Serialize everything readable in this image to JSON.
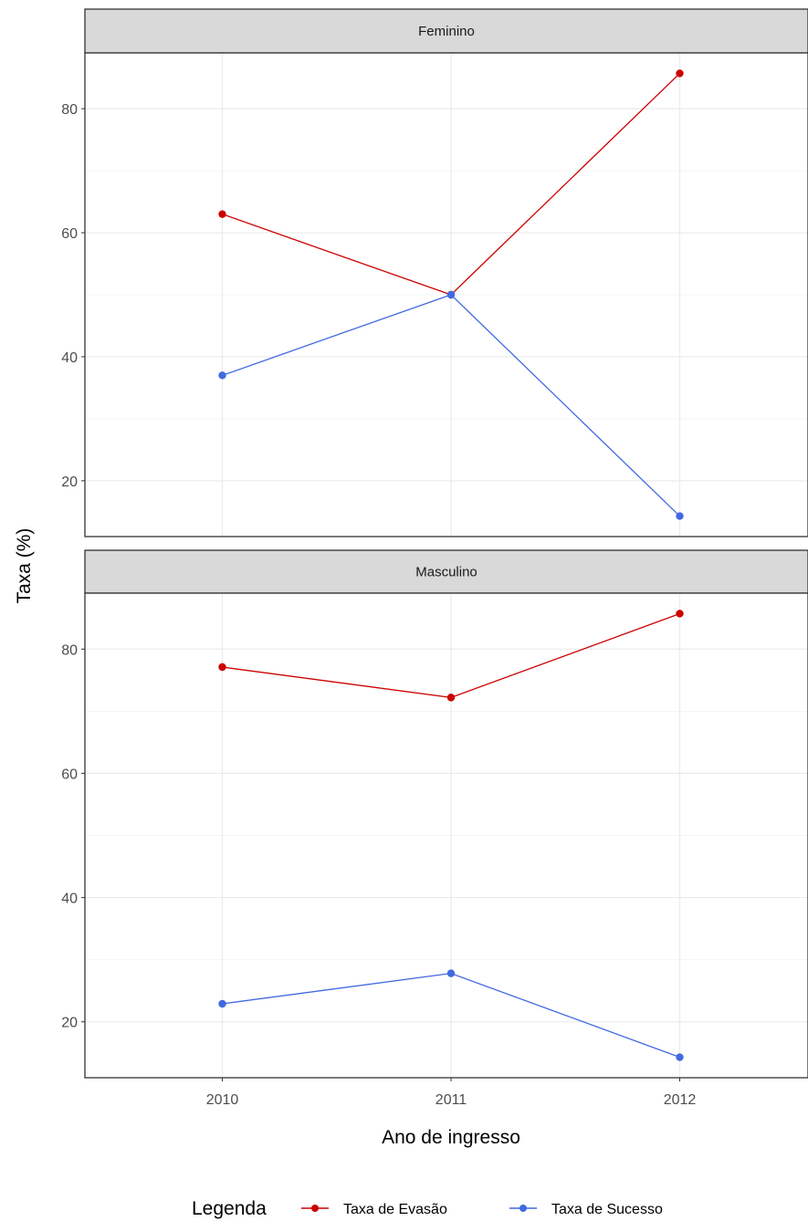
{
  "chart_data": {
    "type": "line",
    "facet_layout": "rows",
    "x": [
      "2010",
      "2011",
      "2012"
    ],
    "xlabel": "Ano de ingresso",
    "ylabel": "Taxa (%)",
    "ylim": [
      11,
      89
    ],
    "yticks": [
      20,
      40,
      60,
      80
    ],
    "grid": true,
    "legend": {
      "title": "Legenda",
      "position": "bottom",
      "entries": [
        {
          "name": "Taxa de Evasão",
          "color": "#cc0000"
        },
        {
          "name": "Taxa de Sucesso",
          "color": "#4169e1"
        }
      ]
    },
    "panels": [
      {
        "label": "Feminino",
        "series": [
          {
            "name": "Taxa de Evasão",
            "color": "#cc0000",
            "values": [
              63,
              50,
              85.7
            ]
          },
          {
            "name": "Taxa de Sucesso",
            "color": "#4169e1",
            "values": [
              37,
              50,
              14.3
            ]
          }
        ]
      },
      {
        "label": "Masculino",
        "series": [
          {
            "name": "Taxa de Evasão",
            "color": "#cc0000",
            "values": [
              77.1,
              72.2,
              85.7
            ]
          },
          {
            "name": "Taxa de Sucesso",
            "color": "#4169e1",
            "values": [
              22.9,
              27.8,
              14.3
            ]
          }
        ]
      }
    ]
  }
}
